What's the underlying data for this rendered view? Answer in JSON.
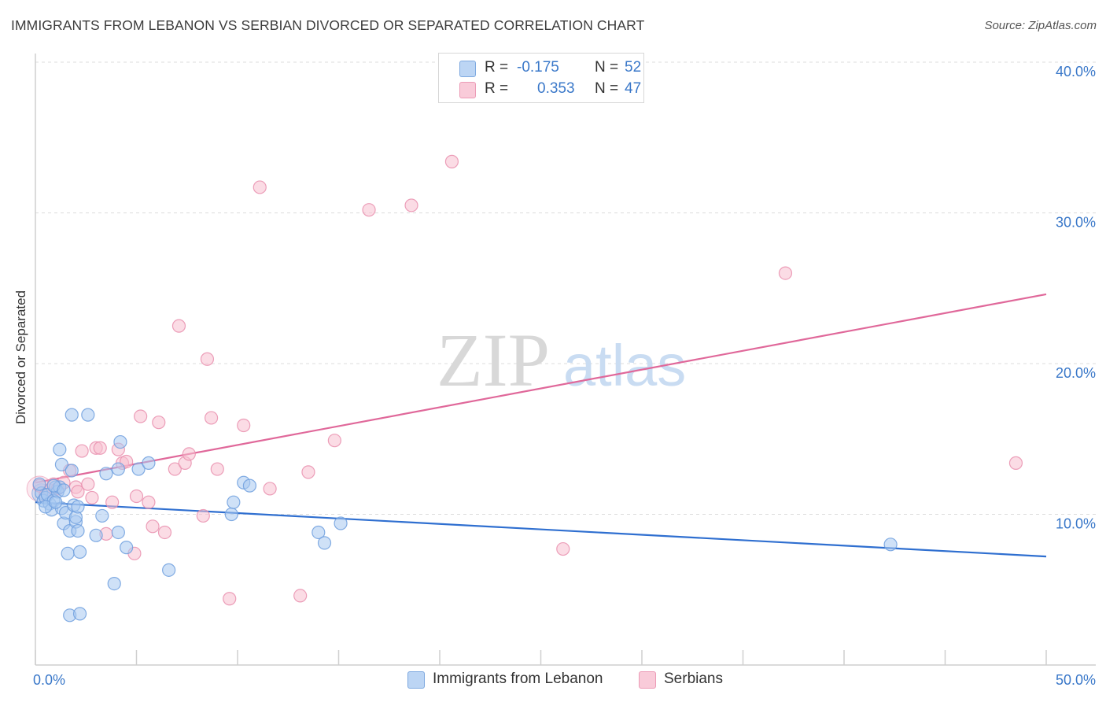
{
  "header": {
    "title": "IMMIGRANTS FROM LEBANON VS SERBIAN DIVORCED OR SEPARATED CORRELATION CHART",
    "source": "Source: ZipAtlas.com"
  },
  "watermark": {
    "zip": "ZIP",
    "atlas": "atlas"
  },
  "legend": {
    "rows": [
      {
        "r_label": "R =",
        "r_value": "-0.175",
        "n_label": "N =",
        "n_value": "52",
        "color": "#9dc3f0"
      },
      {
        "r_label": "R =",
        "r_value": "0.353",
        "n_label": "N =",
        "n_value": "47",
        "color": "#f5b3c8"
      }
    ]
  },
  "bottom_legend": {
    "items": [
      {
        "label": "Immigrants from Lebanon",
        "color": "#9dc3f0"
      },
      {
        "label": "Serbians",
        "color": "#f5b3c8"
      }
    ]
  },
  "colors": {
    "blue_fill": "#a8c8f0",
    "blue_stroke": "#6f9fde",
    "blue_line": "#2f6fd0",
    "pink_fill": "#f7bfd0",
    "pink_stroke": "#e98fae",
    "pink_line": "#e0689a",
    "tick_label": "#3a78c9"
  },
  "chart_data": {
    "type": "scatter",
    "title": "IMMIGRANTS FROM LEBANON VS SERBIAN DIVORCED OR SEPARATED CORRELATION CHART",
    "xlabel": "",
    "ylabel": "Divorced or Separated",
    "xlim": [
      0,
      50
    ],
    "ylim": [
      0,
      40
    ],
    "x_tick_labels": [
      {
        "value": 0,
        "label": "0.0%"
      },
      {
        "value": 50,
        "label": "50.0%"
      }
    ],
    "y_tick_labels": [
      {
        "value": 10,
        "label": "10.0%"
      },
      {
        "value": 20,
        "label": "20.0%"
      },
      {
        "value": 30,
        "label": "30.0%"
      },
      {
        "value": 40,
        "label": "40.0%"
      }
    ],
    "grid": true,
    "series": [
      {
        "name": "Immigrants from Lebanon",
        "color": "#a8c8f0",
        "trend": {
          "x": [
            0,
            50
          ],
          "y": [
            10.8,
            7.2
          ]
        },
        "points": [
          [
            0.3,
            11.4
          ],
          [
            0.4,
            10.9
          ],
          [
            0.5,
            11.1
          ],
          [
            0.7,
            10.7
          ],
          [
            0.8,
            10.3
          ],
          [
            0.6,
            11.3
          ],
          [
            0.9,
            10.9
          ],
          [
            1.0,
            11.8
          ],
          [
            1.1,
            11.5
          ],
          [
            1.2,
            11.8
          ],
          [
            1.3,
            10.4
          ],
          [
            1.2,
            14.3
          ],
          [
            1.3,
            13.3
          ],
          [
            1.4,
            9.4
          ],
          [
            1.5,
            10.1
          ],
          [
            1.6,
            7.4
          ],
          [
            1.7,
            8.9
          ],
          [
            1.7,
            3.3
          ],
          [
            1.8,
            12.9
          ],
          [
            1.8,
            16.6
          ],
          [
            1.9,
            10.6
          ],
          [
            2.0,
            9.5
          ],
          [
            2.0,
            9.8
          ],
          [
            2.1,
            8.9
          ],
          [
            2.2,
            7.5
          ],
          [
            2.2,
            3.4
          ],
          [
            2.1,
            10.5
          ],
          [
            2.6,
            16.6
          ],
          [
            3.0,
            8.6
          ],
          [
            3.3,
            9.9
          ],
          [
            3.5,
            12.7
          ],
          [
            3.9,
            5.4
          ],
          [
            4.1,
            13.0
          ],
          [
            4.1,
            8.8
          ],
          [
            4.2,
            14.8
          ],
          [
            4.5,
            7.8
          ],
          [
            5.1,
            13.0
          ],
          [
            5.6,
            13.4
          ],
          [
            6.6,
            6.3
          ],
          [
            9.7,
            10.0
          ],
          [
            9.8,
            10.8
          ],
          [
            10.3,
            12.1
          ],
          [
            10.6,
            11.9
          ],
          [
            14.0,
            8.8
          ],
          [
            14.3,
            8.1
          ],
          [
            15.1,
            9.4
          ],
          [
            42.3,
            8.0
          ],
          [
            0.2,
            12.0
          ],
          [
            0.5,
            10.5
          ],
          [
            0.9,
            11.9
          ],
          [
            1.0,
            10.8
          ],
          [
            1.4,
            11.6
          ]
        ]
      },
      {
        "name": "Serbians",
        "color": "#f7bfd0",
        "trend": {
          "x": [
            0,
            50
          ],
          "y": [
            12.1,
            24.6
          ]
        },
        "points": [
          [
            0.2,
            11.9
          ],
          [
            0.5,
            11.3
          ],
          [
            0.7,
            11.6
          ],
          [
            0.9,
            12.0
          ],
          [
            1.1,
            11.7
          ],
          [
            1.4,
            12.1
          ],
          [
            1.7,
            12.9
          ],
          [
            2.0,
            11.8
          ],
          [
            2.1,
            11.5
          ],
          [
            2.3,
            14.2
          ],
          [
            2.6,
            12.0
          ],
          [
            2.8,
            11.1
          ],
          [
            3.0,
            14.4
          ],
          [
            3.2,
            14.4
          ],
          [
            3.5,
            8.7
          ],
          [
            3.8,
            10.8
          ],
          [
            4.1,
            14.3
          ],
          [
            4.3,
            13.4
          ],
          [
            4.5,
            13.5
          ],
          [
            4.9,
            7.4
          ],
          [
            5.0,
            11.2
          ],
          [
            5.2,
            16.5
          ],
          [
            5.6,
            10.8
          ],
          [
            5.8,
            9.2
          ],
          [
            6.1,
            16.1
          ],
          [
            6.4,
            8.8
          ],
          [
            6.9,
            13.0
          ],
          [
            7.1,
            22.5
          ],
          [
            7.4,
            13.4
          ],
          [
            7.6,
            14.0
          ],
          [
            8.3,
            9.9
          ],
          [
            8.5,
            20.3
          ],
          [
            8.7,
            16.4
          ],
          [
            9.0,
            13.0
          ],
          [
            9.6,
            4.4
          ],
          [
            10.3,
            15.9
          ],
          [
            11.1,
            31.7
          ],
          [
            11.6,
            11.7
          ],
          [
            13.1,
            4.6
          ],
          [
            13.5,
            12.8
          ],
          [
            14.8,
            14.9
          ],
          [
            16.5,
            30.2
          ],
          [
            18.6,
            30.5
          ],
          [
            20.6,
            33.4
          ],
          [
            26.1,
            7.7
          ],
          [
            37.1,
            26.0
          ],
          [
            48.5,
            13.4
          ]
        ]
      }
    ]
  }
}
